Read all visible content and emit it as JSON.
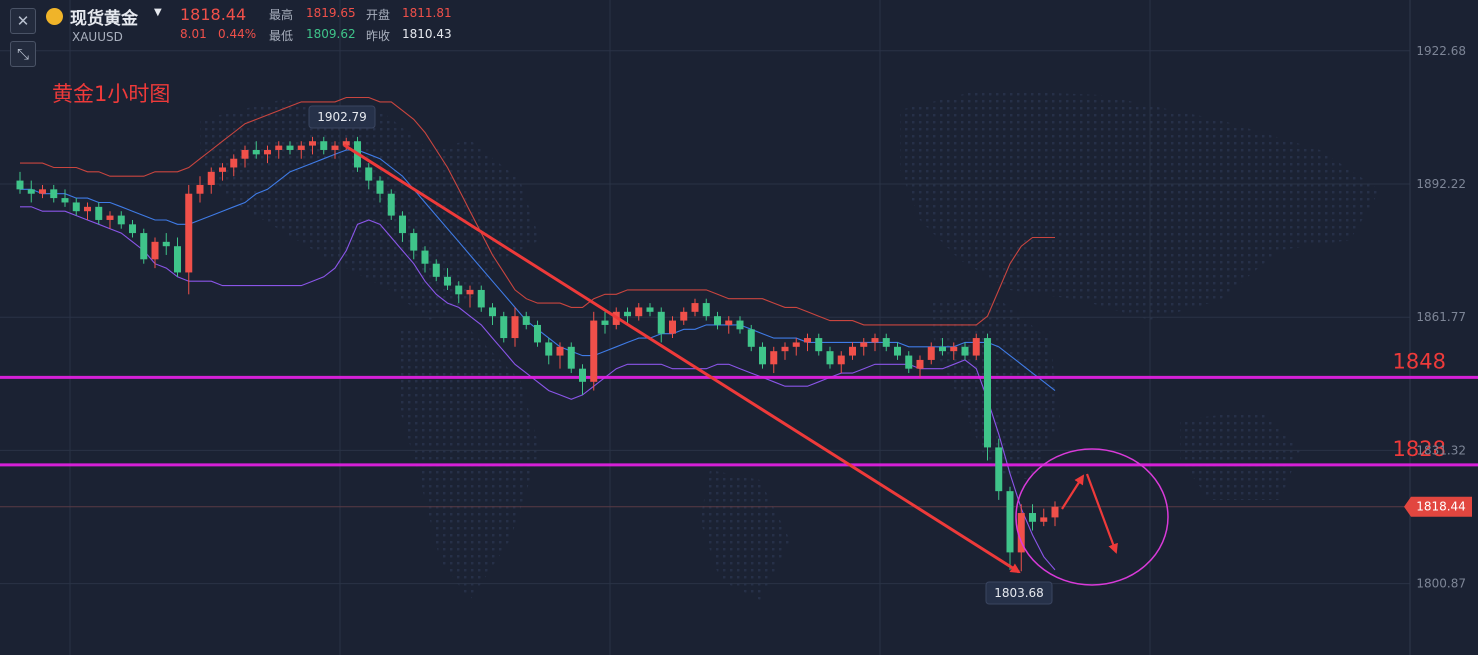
{
  "header": {
    "name": "现货黄金",
    "symbol": "XAUUSD",
    "price": "1818.44",
    "change": "8.01",
    "change_pct": "0.44%",
    "high_label": "最高",
    "high": "1819.65",
    "open_label": "开盘",
    "open": "1811.81",
    "low_label": "最低",
    "low": "1809.62",
    "prev_close_label": "昨收",
    "prev_close": "1810.43"
  },
  "colors": {
    "background": "#1b2233",
    "up": "#f0504a",
    "down": "#3fc48a",
    "level_line": "#e020e0",
    "annotation": "#ee3a3a",
    "upper_band": "#c9453f",
    "middle_band": "#3f7be6",
    "lower_band": "#8a55e8"
  },
  "chart_data": {
    "type": "candlestick",
    "title": "黄金1小时图",
    "y_ticks": [
      "1922.68",
      "1892.22",
      "1861.77",
      "1831.32",
      "1800.87"
    ],
    "ylim": [
      1785,
      1932
    ],
    "current_price": "1818.44",
    "high_marker": "1902.79",
    "low_marker": "1803.68",
    "levels": [
      {
        "label": "1848",
        "value": 1848
      },
      {
        "label": "1828",
        "value": 1828
      }
    ],
    "candles": [
      [
        1893,
        1895,
        1890,
        1891
      ],
      [
        1891,
        1893,
        1888,
        1890
      ],
      [
        1890,
        1892,
        1889,
        1891
      ],
      [
        1891,
        1892,
        1888,
        1889
      ],
      [
        1889,
        1891,
        1887,
        1888
      ],
      [
        1888,
        1889,
        1885,
        1886
      ],
      [
        1886,
        1888,
        1884,
        1887
      ],
      [
        1887,
        1888,
        1883,
        1884
      ],
      [
        1884,
        1886,
        1882,
        1885
      ],
      [
        1885,
        1886,
        1882,
        1883
      ],
      [
        1883,
        1884,
        1880,
        1881
      ],
      [
        1881,
        1882,
        1874,
        1875
      ],
      [
        1875,
        1880,
        1873,
        1879
      ],
      [
        1879,
        1881,
        1876,
        1878
      ],
      [
        1878,
        1880,
        1871,
        1872
      ],
      [
        1872,
        1892,
        1867,
        1890
      ],
      [
        1890,
        1894,
        1888,
        1892
      ],
      [
        1892,
        1896,
        1890,
        1895
      ],
      [
        1895,
        1897,
        1893,
        1896
      ],
      [
        1896,
        1899,
        1894,
        1898
      ],
      [
        1898,
        1901,
        1896,
        1900
      ],
      [
        1900,
        1902,
        1898,
        1899
      ],
      [
        1899,
        1901,
        1897,
        1900
      ],
      [
        1900,
        1902,
        1898,
        1901
      ],
      [
        1901,
        1902,
        1899,
        1900
      ],
      [
        1900,
        1902,
        1898,
        1901
      ],
      [
        1901,
        1903,
        1899,
        1902
      ],
      [
        1902,
        1903,
        1899,
        1900
      ],
      [
        1900,
        1902,
        1898,
        1901
      ],
      [
        1901,
        1902.79,
        1900,
        1902
      ],
      [
        1902,
        1903,
        1895,
        1896
      ],
      [
        1896,
        1897,
        1891,
        1893
      ],
      [
        1893,
        1894,
        1888,
        1890
      ],
      [
        1890,
        1891,
        1884,
        1885
      ],
      [
        1885,
        1886,
        1879,
        1881
      ],
      [
        1881,
        1882,
        1875,
        1877
      ],
      [
        1877,
        1878,
        1872,
        1874
      ],
      [
        1874,
        1875,
        1870,
        1871
      ],
      [
        1871,
        1873,
        1868,
        1869
      ],
      [
        1869,
        1870,
        1865,
        1867
      ],
      [
        1867,
        1869,
        1864,
        1868
      ],
      [
        1868,
        1869,
        1863,
        1864
      ],
      [
        1864,
        1865,
        1860,
        1862
      ],
      [
        1862,
        1863,
        1856,
        1857
      ],
      [
        1857,
        1864,
        1855,
        1862
      ],
      [
        1862,
        1863,
        1859,
        1860
      ],
      [
        1860,
        1861,
        1855,
        1856
      ],
      [
        1856,
        1857,
        1851,
        1853
      ],
      [
        1853,
        1856,
        1850,
        1855
      ],
      [
        1855,
        1856,
        1849,
        1850
      ],
      [
        1850,
        1851,
        1844,
        1847
      ],
      [
        1847,
        1863,
        1845,
        1861
      ],
      [
        1861,
        1863,
        1858,
        1860
      ],
      [
        1860,
        1864,
        1859,
        1863
      ],
      [
        1863,
        1864,
        1860,
        1862
      ],
      [
        1862,
        1865,
        1861,
        1864
      ],
      [
        1864,
        1865,
        1862,
        1863
      ],
      [
        1863,
        1864,
        1856,
        1858
      ],
      [
        1858,
        1862,
        1857,
        1861
      ],
      [
        1861,
        1864,
        1860,
        1863
      ],
      [
        1863,
        1866,
        1862,
        1865
      ],
      [
        1865,
        1866,
        1861,
        1862
      ],
      [
        1862,
        1863,
        1859,
        1860
      ],
      [
        1860,
        1862,
        1858,
        1861
      ],
      [
        1861,
        1862,
        1858,
        1859
      ],
      [
        1859,
        1860,
        1854,
        1855
      ],
      [
        1855,
        1856,
        1850,
        1851
      ],
      [
        1851,
        1855,
        1849,
        1854
      ],
      [
        1854,
        1856,
        1852,
        1855
      ],
      [
        1855,
        1857,
        1853,
        1856
      ],
      [
        1856,
        1858,
        1854,
        1857
      ],
      [
        1857,
        1858,
        1853,
        1854
      ],
      [
        1854,
        1855,
        1850,
        1851
      ],
      [
        1851,
        1854,
        1849,
        1853
      ],
      [
        1853,
        1856,
        1852,
        1855
      ],
      [
        1855,
        1857,
        1853,
        1856
      ],
      [
        1856,
        1858,
        1854,
        1857
      ],
      [
        1857,
        1858,
        1854,
        1855
      ],
      [
        1855,
        1856,
        1852,
        1853
      ],
      [
        1853,
        1854,
        1849,
        1850
      ],
      [
        1850,
        1853,
        1848,
        1852
      ],
      [
        1852,
        1856,
        1851,
        1855
      ],
      [
        1855,
        1857,
        1853,
        1854
      ],
      [
        1854,
        1856,
        1852,
        1855
      ],
      [
        1855,
        1856,
        1852,
        1853
      ],
      [
        1853,
        1858,
        1852,
        1857
      ],
      [
        1857,
        1858,
        1829,
        1832
      ],
      [
        1832,
        1834,
        1820,
        1822
      ],
      [
        1822,
        1823,
        1804,
        1808
      ],
      [
        1808,
        1819,
        1803.68,
        1817
      ],
      [
        1817,
        1819,
        1813,
        1815
      ],
      [
        1815,
        1818,
        1814,
        1816
      ],
      [
        1816,
        1819.65,
        1814,
        1818.44
      ]
    ],
    "upper_band": [
      1897,
      1897,
      1897,
      1896,
      1896,
      1896,
      1895,
      1895,
      1894,
      1894,
      1894,
      1894,
      1895,
      1895,
      1895,
      1896,
      1898,
      1900,
      1902,
      1904,
      1906,
      1907,
      1908,
      1909,
      1910,
      1911,
      1911,
      1911,
      1911,
      1912,
      1912,
      1912,
      1911,
      1911,
      1909,
      1907,
      1904,
      1900,
      1896,
      1891,
      1886,
      1881,
      1876,
      1872,
      1868,
      1866,
      1865,
      1865,
      1865,
      1864,
      1864,
      1866,
      1867,
      1867,
      1868,
      1868,
      1868,
      1868,
      1868,
      1868,
      1868,
      1868,
      1867,
      1866,
      1866,
      1866,
      1866,
      1865,
      1864,
      1864,
      1863,
      1862,
      1861,
      1861,
      1861,
      1860,
      1860,
      1860,
      1860,
      1860,
      1860,
      1860,
      1860,
      1860,
      1860,
      1860,
      1862,
      1868,
      1874,
      1878,
      1880,
      1880,
      1880
    ],
    "middle_band": [
      1891,
      1891,
      1890,
      1890,
      1890,
      1889,
      1889,
      1888,
      1888,
      1887,
      1886,
      1885,
      1884,
      1884,
      1883,
      1883,
      1884,
      1885,
      1886,
      1887,
      1888,
      1890,
      1891,
      1893,
      1895,
      1896,
      1897,
      1898,
      1899,
      1900,
      1900,
      1899,
      1898,
      1896,
      1894,
      1891,
      1888,
      1885,
      1882,
      1879,
      1876,
      1873,
      1870,
      1867,
      1864,
      1861,
      1859,
      1857,
      1855,
      1854,
      1853,
      1853,
      1854,
      1855,
      1856,
      1857,
      1857,
      1858,
      1858,
      1859,
      1859,
      1860,
      1860,
      1860,
      1860,
      1859,
      1858,
      1857,
      1857,
      1857,
      1856,
      1856,
      1856,
      1856,
      1856,
      1856,
      1856,
      1856,
      1856,
      1855,
      1855,
      1855,
      1855,
      1855,
      1856,
      1856,
      1856,
      1855,
      1853,
      1851,
      1849,
      1847,
      1845
    ],
    "lower_band": [
      1887,
      1887,
      1886,
      1886,
      1886,
      1885,
      1884,
      1883,
      1882,
      1881,
      1879,
      1877,
      1874,
      1873,
      1871,
      1870,
      1870,
      1870,
      1869,
      1869,
      1869,
      1869,
      1869,
      1869,
      1869,
      1869,
      1870,
      1871,
      1873,
      1877,
      1883,
      1884,
      1883,
      1880,
      1877,
      1874,
      1870,
      1867,
      1865,
      1864,
      1862,
      1860,
      1857,
      1854,
      1851,
      1849,
      1847,
      1845,
      1844,
      1843,
      1844,
      1846,
      1848,
      1850,
      1851,
      1851,
      1851,
      1851,
      1850,
      1850,
      1850,
      1850,
      1851,
      1851,
      1850,
      1849,
      1848,
      1847,
      1846,
      1846,
      1846,
      1847,
      1848,
      1849,
      1849,
      1850,
      1851,
      1851,
      1851,
      1851,
      1850,
      1850,
      1850,
      1851,
      1852,
      1850,
      1843,
      1835,
      1826,
      1818,
      1812,
      1807,
      1804
    ]
  }
}
